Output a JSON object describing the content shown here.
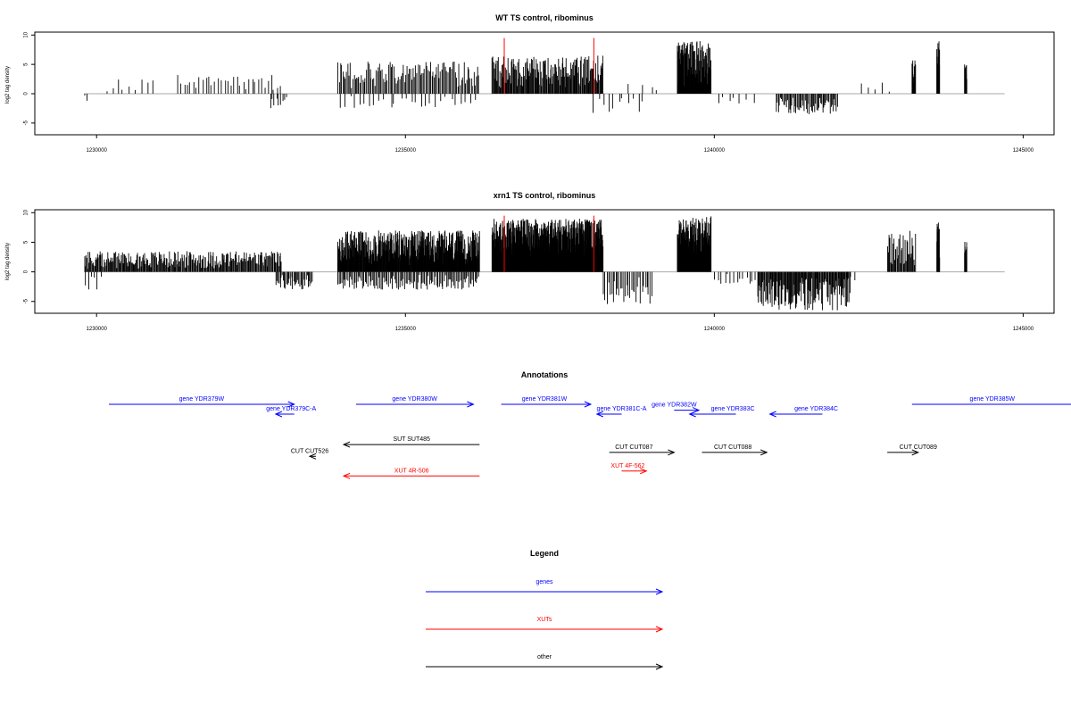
{
  "chart_data": [
    {
      "type": "bar",
      "title": "WT TS control, ribominus",
      "xlabel": "",
      "ylabel": "log2 tag density",
      "xlim": [
        1229000,
        1245500
      ],
      "ylim": [
        -7,
        10.5
      ],
      "x_ticks": [
        1230000,
        1235000,
        1240000,
        1245000
      ],
      "y_ticks": [
        10,
        5,
        0,
        -5
      ],
      "x_tick_labels": [
        "1230000",
        "1235000",
        "1240000",
        "1245000"
      ],
      "y_tick_labels": [
        "10",
        "5",
        "0",
        "-5"
      ],
      "baseline": {
        "from": 1229800,
        "to": 1244700
      },
      "highlight_lines": [
        1236600,
        1238050
      ],
      "highlight_color": "#ff0000",
      "bar_color": "#000000",
      "regions": [
        {
          "start": 1229800,
          "end": 1229850,
          "sign": -1,
          "max": 1.5,
          "density": 0.02,
          "seed": 1
        },
        {
          "start": 1230100,
          "end": 1231000,
          "sign": 1,
          "max": 2.5,
          "density": 0.01,
          "seed": 2
        },
        {
          "start": 1231300,
          "end": 1233000,
          "sign": 1,
          "max": 3.2,
          "density": 0.02,
          "seed": 3
        },
        {
          "start": 1232800,
          "end": 1233100,
          "sign": -1,
          "max": 2.5,
          "density": 0.03,
          "seed": 4
        },
        {
          "start": 1233900,
          "end": 1236200,
          "sign": 1,
          "max": 5.5,
          "density": 0.05,
          "seed": 5
        },
        {
          "start": 1233900,
          "end": 1236200,
          "sign": -1,
          "max": 2.5,
          "density": 0.012,
          "seed": 6
        },
        {
          "start": 1236400,
          "end": 1238200,
          "sign": 1,
          "max": 6.5,
          "density": 0.09,
          "seed": 7
        },
        {
          "start": 1238000,
          "end": 1238900,
          "sign": -1,
          "max": 3.5,
          "density": 0.012,
          "seed": 8
        },
        {
          "start": 1238600,
          "end": 1239200,
          "sign": 1,
          "max": 1.8,
          "density": 0.006,
          "seed": 9
        },
        {
          "start": 1239400,
          "end": 1239950,
          "sign": 1,
          "max": 9,
          "density": 0.18,
          "seed": 10
        },
        {
          "start": 1240000,
          "end": 1240700,
          "sign": -1,
          "max": 1.8,
          "density": 0.01,
          "seed": 11
        },
        {
          "start": 1241000,
          "end": 1242000,
          "sign": -1,
          "max": 3.5,
          "density": 0.06,
          "seed": 12
        },
        {
          "start": 1242300,
          "end": 1242900,
          "sign": 1,
          "max": 2,
          "density": 0.008,
          "seed": 13
        },
        {
          "start": 1243200,
          "end": 1243260,
          "sign": 1,
          "max": 6,
          "density": 0.2,
          "seed": 14
        },
        {
          "start": 1243600,
          "end": 1243650,
          "sign": 1,
          "max": 9,
          "density": 0.25,
          "seed": 15
        },
        {
          "start": 1244050,
          "end": 1244090,
          "sign": 1,
          "max": 6,
          "density": 0.25,
          "seed": 16
        }
      ]
    },
    {
      "type": "bar",
      "title": "xrn1 TS control, ribominus",
      "xlabel": "",
      "ylabel": "log2 tag density",
      "xlim": [
        1229000,
        1245500
      ],
      "ylim": [
        -7,
        10.5
      ],
      "x_ticks": [
        1230000,
        1235000,
        1240000,
        1245000
      ],
      "y_ticks": [
        10,
        5,
        0,
        -5
      ],
      "x_tick_labels": [
        "1230000",
        "1235000",
        "1240000",
        "1245000"
      ],
      "y_tick_labels": [
        "10",
        "5",
        "0",
        "-5"
      ],
      "baseline": {
        "from": 1229800,
        "to": 1244700
      },
      "highlight_lines": [
        1236600,
        1238050
      ],
      "highlight_color": "#ff0000",
      "bar_color": "#000000",
      "regions": [
        {
          "start": 1229800,
          "end": 1230100,
          "sign": -1,
          "max": 3,
          "density": 0.02,
          "seed": 21
        },
        {
          "start": 1229800,
          "end": 1233000,
          "sign": 1,
          "max": 3.5,
          "density": 0.08,
          "seed": 22
        },
        {
          "start": 1232900,
          "end": 1233500,
          "sign": -1,
          "max": 3,
          "density": 0.06,
          "seed": 23
        },
        {
          "start": 1233900,
          "end": 1236200,
          "sign": 1,
          "max": 7,
          "density": 0.16,
          "seed": 24
        },
        {
          "start": 1233900,
          "end": 1236200,
          "sign": -1,
          "max": 3,
          "density": 0.05,
          "seed": 25
        },
        {
          "start": 1236400,
          "end": 1238200,
          "sign": 1,
          "max": 9,
          "density": 0.3,
          "seed": 26
        },
        {
          "start": 1238200,
          "end": 1239000,
          "sign": -1,
          "max": 5.5,
          "density": 0.04,
          "seed": 27
        },
        {
          "start": 1239400,
          "end": 1239950,
          "sign": 1,
          "max": 9.5,
          "density": 0.22,
          "seed": 28
        },
        {
          "start": 1240000,
          "end": 1240700,
          "sign": -1,
          "max": 2,
          "density": 0.02,
          "seed": 29
        },
        {
          "start": 1240700,
          "end": 1242200,
          "sign": -1,
          "max": 6.5,
          "density": 0.09,
          "seed": 30
        },
        {
          "start": 1242100,
          "end": 1242300,
          "sign": -1,
          "max": 1.5,
          "density": 0.02,
          "seed": 31
        },
        {
          "start": 1242800,
          "end": 1243260,
          "sign": 1,
          "max": 7,
          "density": 0.08,
          "seed": 32
        },
        {
          "start": 1243600,
          "end": 1243650,
          "sign": 1,
          "max": 8.5,
          "density": 0.25,
          "seed": 33
        },
        {
          "start": 1244050,
          "end": 1244090,
          "sign": 1,
          "max": 5.5,
          "density": 0.25,
          "seed": 34
        }
      ]
    }
  ],
  "annotations": {
    "title": "Annotations",
    "xlim": [
      1229000,
      1245500
    ],
    "features": [
      {
        "label": "gene YDR379W",
        "type": "genes",
        "strand": "+",
        "start": 1230200,
        "end": 1233200,
        "label_x": 1231700,
        "row": 0
      },
      {
        "label": "gene YDR379C-A",
        "type": "genes",
        "strand": "-",
        "start": 1232900,
        "end": 1233200,
        "label_x": 1233150,
        "row": 1
      },
      {
        "label": "gene YDR380W",
        "type": "genes",
        "strand": "+",
        "start": 1234200,
        "end": 1236100,
        "label_x": 1235150,
        "row": 0
      },
      {
        "label": "gene YDR381W",
        "type": "genes",
        "strand": "+",
        "start": 1236550,
        "end": 1238000,
        "label_x": 1237250,
        "row": 0
      },
      {
        "label": "gene YDR381C-A",
        "type": "genes",
        "strand": "-",
        "start": 1238100,
        "end": 1238500,
        "label_x": 1238500,
        "row": 1
      },
      {
        "label": "gene YDR382W",
        "type": "genes",
        "strand": "+",
        "start": 1239350,
        "end": 1239750,
        "label_x": 1239350,
        "row": 0.6
      },
      {
        "label": "gene YDR383C",
        "type": "genes",
        "strand": "-",
        "start": 1239600,
        "end": 1240350,
        "label_x": 1240300,
        "row": 1
      },
      {
        "label": "gene YDR384C",
        "type": "genes",
        "strand": "-",
        "start": 1240900,
        "end": 1241750,
        "label_x": 1241650,
        "row": 1
      },
      {
        "label": "gene YDR385W",
        "type": "genes",
        "strand": "+",
        "start": 1243200,
        "end": 1246000,
        "label_x": 1244500,
        "row": 0
      },
      {
        "label": "SUT SUT485",
        "type": "other",
        "strand": "-",
        "start": 1234000,
        "end": 1236200,
        "label_x": 1235100,
        "row": 4.1
      },
      {
        "label": "CUT CUT526",
        "type": "other",
        "strand": "-",
        "start": 1233450,
        "end": 1233550,
        "label_x": 1233450,
        "row": 5.3
      },
      {
        "label": "XUT 4R-506",
        "type": "xuts",
        "strand": "-",
        "start": 1234000,
        "end": 1236200,
        "label_x": 1235100,
        "row": 7.3
      },
      {
        "label": "CUT CUT087",
        "type": "other",
        "strand": "+",
        "start": 1238300,
        "end": 1239350,
        "label_x": 1238700,
        "row": 4.9
      },
      {
        "label": "XUT 4F-562",
        "type": "xuts",
        "strand": "+",
        "start": 1238500,
        "end": 1238900,
        "label_x": 1238600,
        "row": 6.8
      },
      {
        "label": "CUT CUT088",
        "type": "other",
        "strand": "+",
        "start": 1239800,
        "end": 1240850,
        "label_x": 1240300,
        "row": 4.9
      },
      {
        "label": "CUT CUT089",
        "type": "other",
        "strand": "+",
        "start": 1242800,
        "end": 1243300,
        "label_x": 1243300,
        "row": 4.9
      }
    ]
  },
  "legend": {
    "title": "Legend",
    "items": [
      {
        "label": "genes",
        "color": "#0000ff"
      },
      {
        "label": "XUTs",
        "color": "#ff0000"
      },
      {
        "label": "other",
        "color": "#000000"
      }
    ]
  },
  "colors": {
    "genes": "#0000ff",
    "xuts": "#ff0000",
    "other": "#000000",
    "axis": "#000000",
    "baseline": "#aaaaaa"
  }
}
